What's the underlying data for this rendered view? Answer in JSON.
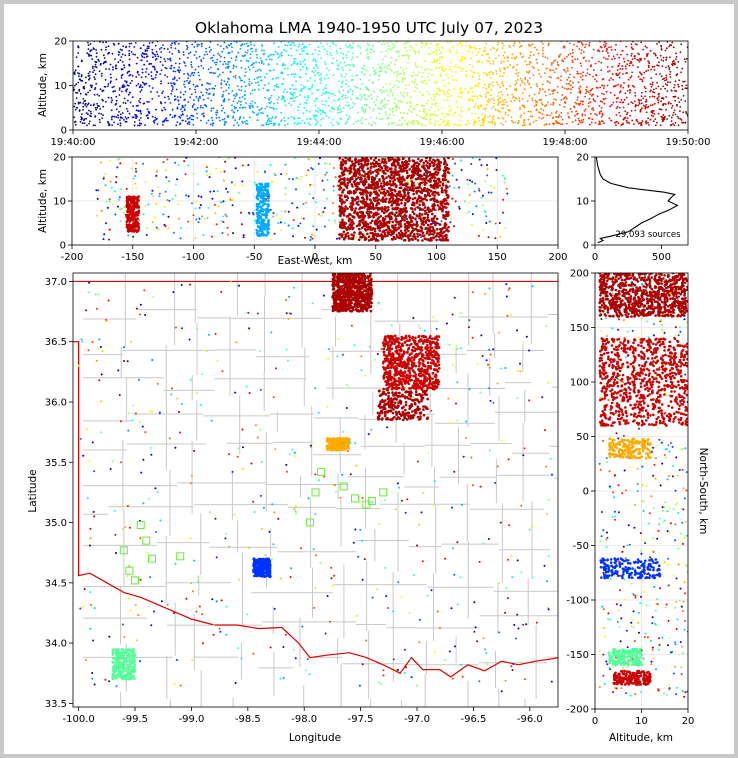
{
  "chart_data": [
    {
      "type": "scatter",
      "panel": "time-altitude",
      "title": "Oklahoma LMA 1940-1950 UTC July 07, 2023",
      "ylabel": "Altitude, km",
      "xlim": [
        "19:40:00",
        "19:50:00"
      ],
      "ylim": [
        0,
        20
      ],
      "x_ticks": [
        "19:40:00",
        "19:42:00",
        "19:44:00",
        "19:46:00",
        "19:48:00",
        "19:50:00"
      ],
      "y_ticks": [
        0,
        10,
        20
      ],
      "color_by": "time",
      "colormap": "jet",
      "source_altitude_range": [
        1,
        20
      ]
    },
    {
      "type": "scatter",
      "panel": "east-west-altitude",
      "xlabel": "East-West, km",
      "ylabel": "Altitude, km",
      "xlim": [
        -200,
        200
      ],
      "ylim": [
        0,
        20
      ],
      "x_ticks": [
        -200,
        -150,
        -100,
        -50,
        0,
        50,
        100,
        150,
        200
      ],
      "y_ticks": [
        0,
        10,
        20
      ],
      "grid": true,
      "clusters_east_west_km": [
        {
          "x_range": [
            -155,
            -145
          ],
          "alt_range": [
            3,
            11
          ],
          "color": "#cc0000"
        },
        {
          "x_range": [
            -48,
            -38
          ],
          "alt_range": [
            2,
            14
          ],
          "color": "#00aaff"
        },
        {
          "x_range": [
            20,
            110
          ],
          "alt_range": [
            1,
            20
          ],
          "color": "#aa0000"
        }
      ]
    },
    {
      "type": "line",
      "panel": "altitude-histogram",
      "xlim": [
        0,
        700
      ],
      "ylim": [
        0,
        20
      ],
      "x_ticks": [
        0,
        500
      ],
      "y_ticks": [
        0,
        10,
        20
      ],
      "annotation": "29,093 sources",
      "series": [
        {
          "altitude_km": [
            0.5,
            1,
            1.5,
            2,
            3,
            4,
            5,
            6,
            7,
            8,
            9,
            10,
            11,
            11.5,
            12,
            13,
            14,
            15,
            16,
            17,
            18,
            19,
            20
          ],
          "count": [
            20,
            60,
            40,
            120,
            250,
            300,
            350,
            420,
            480,
            560,
            620,
            550,
            580,
            600,
            520,
            250,
            120,
            60,
            40,
            30,
            20,
            15,
            10
          ]
        }
      ]
    },
    {
      "type": "scatter",
      "panel": "plan-view",
      "xlabel": "Longitude",
      "ylabel": "Latitude",
      "xlim": [
        -100.05,
        -95.75
      ],
      "ylim": [
        33.47,
        37.07
      ],
      "x_ticks": [
        "-100.0",
        "-99.5",
        "-99.0",
        "-98.5",
        "-98.0",
        "-97.5",
        "-97.0",
        "-96.5",
        "-96.0"
      ],
      "y_ticks": [
        "33.5",
        "34.0",
        "34.5",
        "35.0",
        "35.5",
        "36.0",
        "36.5",
        "37.0"
      ],
      "station_marker": "open-square",
      "station_color": "#66ee33",
      "stations_lon_lat": [
        [
          -99.45,
          34.98
        ],
        [
          -99.4,
          34.85
        ],
        [
          -99.6,
          34.77
        ],
        [
          -99.35,
          34.7
        ],
        [
          -99.1,
          34.72
        ],
        [
          -99.55,
          34.6
        ],
        [
          -99.5,
          34.52
        ],
        [
          -97.65,
          35.3
        ],
        [
          -97.55,
          35.2
        ],
        [
          -97.45,
          35.15
        ],
        [
          -97.4,
          35.18
        ],
        [
          -97.3,
          35.25
        ],
        [
          -97.85,
          35.42
        ],
        [
          -97.95,
          35.0
        ],
        [
          -97.9,
          35.25
        ]
      ],
      "clusters_lon_lat": [
        {
          "lon": [
            -97.75,
            -97.4
          ],
          "lat": [
            36.75,
            37.07
          ],
          "color": "#aa0000"
        },
        {
          "lon": [
            -97.3,
            -96.8
          ],
          "lat": [
            36.1,
            36.55
          ],
          "color": "#cc0000"
        },
        {
          "lon": [
            -97.35,
            -96.9
          ],
          "lat": [
            35.85,
            36.1
          ],
          "color": "#aa0000"
        },
        {
          "lon": [
            -97.8,
            -97.6
          ],
          "lat": [
            35.6,
            35.7
          ],
          "color": "#ffaa00"
        },
        {
          "lon": [
            -98.45,
            -98.3
          ],
          "lat": [
            34.55,
            34.7
          ],
          "color": "#0033ff"
        },
        {
          "lon": [
            -99.7,
            -99.5
          ],
          "lat": [
            33.7,
            33.95
          ],
          "color": "#55ff99"
        }
      ]
    },
    {
      "type": "scatter",
      "panel": "altitude-north-south",
      "xlabel": "Altitude, km",
      "ylabel": "North-South, km",
      "xlim": [
        0,
        20
      ],
      "ylim": [
        -200,
        200
      ],
      "x_ticks": [
        0,
        10,
        20
      ],
      "y_ticks": [
        -200,
        -150,
        -100,
        -50,
        0,
        50,
        100,
        150,
        200
      ],
      "grid": true,
      "clusters_north_south_km": [
        {
          "y_range": [
            160,
            200
          ],
          "alt_range": [
            1,
            20
          ],
          "color": "#aa0000"
        },
        {
          "y_range": [
            60,
            140
          ],
          "alt_range": [
            1,
            20
          ],
          "color": "#cc0000"
        },
        {
          "y_range": [
            30,
            48
          ],
          "alt_range": [
            3,
            12
          ],
          "color": "#ffaa00"
        },
        {
          "y_range": [
            -80,
            -62
          ],
          "alt_range": [
            1,
            14
          ],
          "color": "#0033ff"
        },
        {
          "y_range": [
            -160,
            -145
          ],
          "alt_range": [
            3,
            10
          ],
          "color": "#55ff99"
        },
        {
          "y_range": [
            -178,
            -165
          ],
          "alt_range": [
            4,
            12
          ],
          "color": "#cc0000"
        }
      ]
    }
  ]
}
